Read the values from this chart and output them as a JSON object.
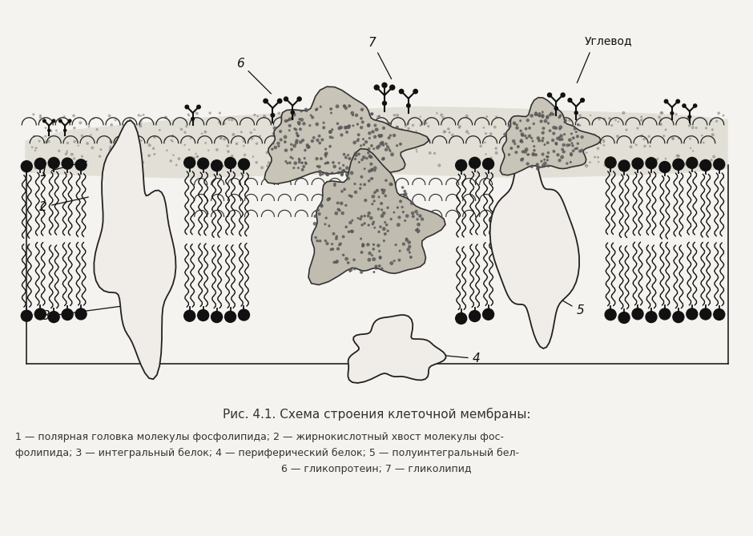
{
  "bg_color": "#f5f3ef",
  "dark": "#1a1a1a",
  "stipple_color": "#888880",
  "title_italic": "Рис. 4.1.",
  "title_rest": " Схема строения клеточной мембраны:",
  "cap1": "1 — полярная головка молекулы фосфолипида; 2 — жирнокислотный хвост молекулы фос-",
  "cap2": "фолипида; 3 — интегральный белок; 4 — периферический белок; 5 — полуинтегральный бел-",
  "cap3": "6 — гликопротеин; 7 — гликолипид",
  "углевод": "Углевод"
}
